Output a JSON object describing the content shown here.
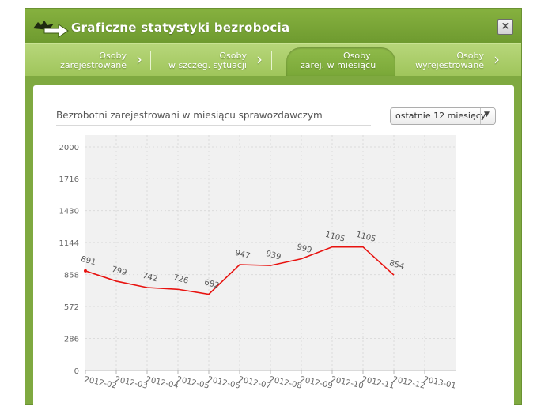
{
  "window": {
    "title": "Graficzne statystyki bezrobocia",
    "close_label": "×"
  },
  "tabs": [
    {
      "line1": "Osoby",
      "line2": "zarejestrowane",
      "active": false
    },
    {
      "line1": "Osoby",
      "line2": "w szczeg. sytuacji",
      "active": false
    },
    {
      "line1": "Osoby",
      "line2": "zarej. w miesiącu",
      "active": true
    },
    {
      "line1": "Osoby",
      "line2": "wyrejestrowane",
      "active": false
    }
  ],
  "chart_header": {
    "title": "Bezrobotni zarejestrowani w miesiącu sprawozdawczym",
    "period_select": "ostatnie 12 miesięcy"
  },
  "colors": {
    "accent_green": "#7fa940",
    "series_line": "#e8120f",
    "plot_bg": "#f1f1f1"
  },
  "chart_data": {
    "type": "line",
    "title": "Bezrobotni zarejestrowani w miesiącu sprawozdawczym",
    "xlabel": "",
    "ylabel": "",
    "categories": [
      "2012-02",
      "2012-03",
      "2012-04",
      "2012-05",
      "2012-06",
      "2012-07",
      "2012-08",
      "2012-09",
      "2012-10",
      "2012-11",
      "2012-12",
      "2013-01"
    ],
    "series": [
      {
        "values": [
          891,
          799,
          742,
          726,
          682,
          947,
          939,
          999,
          1105,
          1105,
          854,
          null
        ]
      }
    ],
    "yticks": [
      0,
      286,
      572,
      858,
      1144,
      1430,
      1716,
      2000
    ],
    "ylim": [
      0,
      2000
    ],
    "grid": true,
    "legend": "none"
  }
}
